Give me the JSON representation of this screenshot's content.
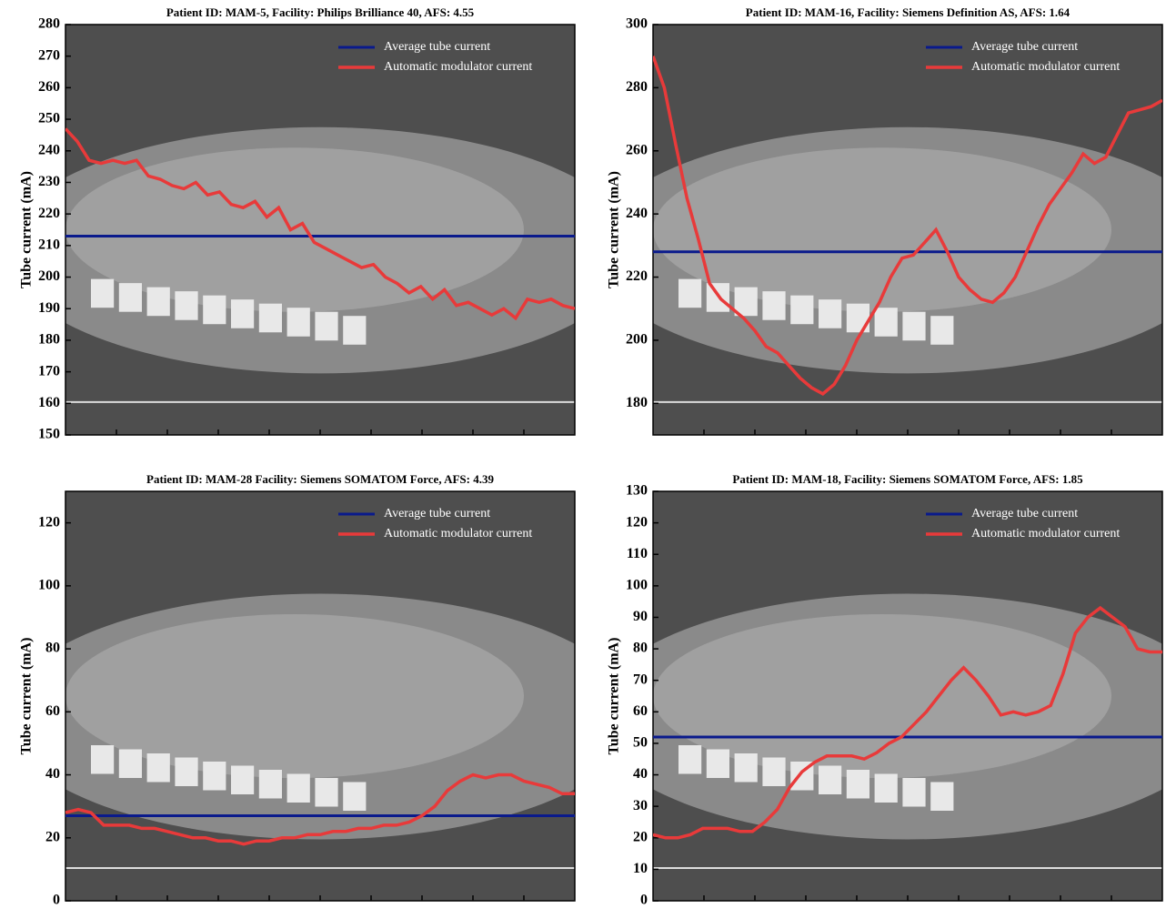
{
  "chart_data": [
    {
      "type": "line",
      "title": "Patient ID: MAM-5, Facility: Philips Brilliance 40, AFS: 4.55",
      "ylabel": "Tube current (mA)",
      "ylim": [
        150,
        280
      ],
      "yticks": [
        150,
        160,
        170,
        180,
        190,
        200,
        210,
        220,
        230,
        240,
        250,
        260,
        270,
        280
      ],
      "legend": "upper right",
      "average": {
        "name": "Average tube current",
        "color": "#0a1a8c",
        "value": 213
      },
      "series": [
        {
          "name": "Automatic modulator current",
          "color": "#e83a3a",
          "values": [
            247,
            243,
            237,
            236,
            237,
            236,
            237,
            232,
            231,
            229,
            228,
            230,
            226,
            227,
            223,
            222,
            224,
            219,
            222,
            215,
            217,
            211,
            209,
            207,
            205,
            203,
            204,
            200,
            198,
            195,
            197,
            193,
            196,
            191,
            192,
            190,
            188,
            190,
            187,
            193,
            192,
            193,
            191,
            190
          ]
        }
      ]
    },
    {
      "type": "line",
      "title": "Patient ID: MAM-16,  Facility: Siemens Definition AS, AFS: 1.64",
      "ylabel": "Tube current (mA)",
      "ylim": [
        170,
        300
      ],
      "yticks": [
        180,
        200,
        220,
        240,
        260,
        280,
        300
      ],
      "legend": "upper right",
      "average": {
        "name": "Average tube current",
        "color": "#0a1a8c",
        "value": 228
      },
      "series": [
        {
          "name": "Automatic modulator current",
          "color": "#e83a3a",
          "values": [
            290,
            280,
            262,
            245,
            232,
            218,
            213,
            210,
            207,
            203,
            198,
            196,
            192,
            188,
            185,
            183,
            186,
            192,
            200,
            206,
            212,
            220,
            226,
            227,
            231,
            235,
            228,
            220,
            216,
            213,
            212,
            215,
            220,
            228,
            236,
            243,
            248,
            253,
            259,
            256,
            258,
            265,
            272,
            273,
            274,
            276
          ]
        }
      ]
    },
    {
      "type": "line",
      "title": "Patient ID: MAM-28 Facility: Siemens SOMATOM Force, AFS: 4.39",
      "ylabel": "Tube current (mA)",
      "ylim": [
        0,
        130
      ],
      "yticks": [
        0,
        20,
        40,
        60,
        80,
        100,
        120
      ],
      "legend": "upper right",
      "average": {
        "name": "Average tube current",
        "color": "#0a1a8c",
        "value": 27
      },
      "series": [
        {
          "name": "Automatic modulator current",
          "color": "#e83a3a",
          "values": [
            28,
            29,
            28,
            24,
            24,
            24,
            23,
            23,
            22,
            21,
            20,
            20,
            19,
            19,
            18,
            19,
            19,
            20,
            20,
            21,
            21,
            22,
            22,
            23,
            23,
            24,
            24,
            25,
            27,
            30,
            35,
            38,
            40,
            39,
            40,
            40,
            38,
            37,
            36,
            34,
            34
          ]
        }
      ]
    },
    {
      "type": "line",
      "title": "Patient ID: MAM-18, Facility: Siemens SOMATOM Force, AFS: 1.85",
      "ylabel": "Tube current (mA)",
      "ylim": [
        0,
        130
      ],
      "yticks": [
        0,
        10,
        20,
        30,
        40,
        50,
        60,
        70,
        80,
        90,
        100,
        110,
        120,
        130
      ],
      "legend": "upper right",
      "average": {
        "name": "Average tube current",
        "color": "#0a1a8c",
        "value": 52
      },
      "series": [
        {
          "name": "Automatic modulator current",
          "color": "#e83a3a",
          "values": [
            21,
            20,
            20,
            21,
            23,
            23,
            23,
            22,
            22,
            25,
            29,
            36,
            41,
            44,
            46,
            46,
            46,
            45,
            47,
            50,
            52,
            56,
            60,
            65,
            70,
            74,
            70,
            65,
            59,
            60,
            59,
            60,
            62,
            72,
            85,
            90,
            93,
            90,
            87,
            80,
            79,
            79
          ]
        }
      ]
    }
  ]
}
